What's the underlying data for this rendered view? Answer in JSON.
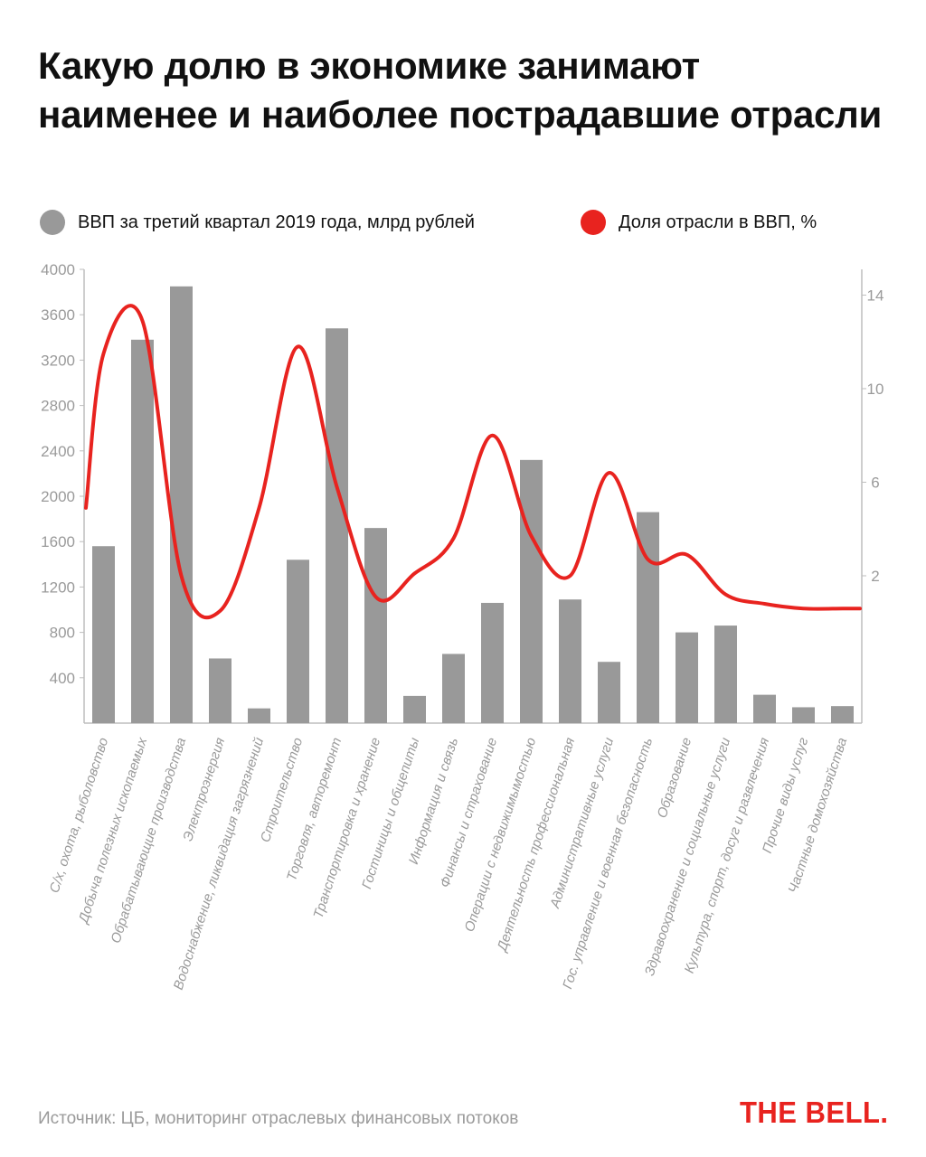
{
  "title": "Какую долю в экономике занимают наименее и наиболее пострадавшие отрасли",
  "legend": [
    {
      "label": "ВВП за третий квартал 2019 года, млрд рублей",
      "color": "#999999"
    },
    {
      "label": "Доля отрасли в ВВП, %",
      "color": "#e8231f"
    }
  ],
  "source": "Источник: ЦБ, мониторинг отраслевых финансовых потоков",
  "brand": "THE BELL.",
  "chart_data": {
    "type": "bar",
    "categories": [
      "С/х, охота, рыболовство",
      "Добыча полезных ископаемых",
      "Обрабатывающие производства",
      "Электроэнергия",
      "Водоснабжение, ликвидация загрязнений",
      "Строительство",
      "Торговля, авторемонт",
      "Транспортировка и хранение",
      "Гостиницы и общепиты",
      "Информация и связь",
      "Финансы и страхование",
      "Операции с недвижимымостью",
      "Деятельность профессиональная",
      "Административные услуги",
      "Гос. управление и военная безопасность",
      "Образование",
      "Здравоохранение и социальные услуги",
      "Культура, спорт, досуг и развлечения",
      "Прочие виды услуг",
      "Частные домохозяйства"
    ],
    "series": [
      {
        "name": "ВВП за третий квартал 2019 года, млрд рублей",
        "type": "bar",
        "axis": "left",
        "color": "#999999",
        "values": [
          1560,
          3380,
          3850,
          570,
          130,
          1440,
          3480,
          1720,
          240,
          610,
          1060,
          2320,
          1090,
          540,
          1860,
          800,
          860,
          250,
          140,
          150
        ]
      },
      {
        "name": "Доля отрасли в ВВП, %",
        "type": "line",
        "axis": "right",
        "color": "#e8231f",
        "values": [
          11.5,
          12.9,
          2.0,
          0.5,
          4.9,
          11.8,
          5.8,
          1.1,
          2.1,
          3.6,
          8.0,
          3.7,
          2.0,
          6.4,
          2.7,
          2.9,
          1.2,
          0.8,
          0.6,
          0.6
        ]
      }
    ],
    "y_left": {
      "ticks": [
        400,
        800,
        1200,
        1600,
        2000,
        2400,
        2800,
        3200,
        3600,
        4000
      ],
      "lim": [
        0,
        4000
      ]
    },
    "y_right": {
      "ticks": [
        2,
        6,
        10,
        14
      ],
      "lim": [
        -4.3,
        15.1
      ]
    },
    "grid": false,
    "legend_position": "top"
  }
}
